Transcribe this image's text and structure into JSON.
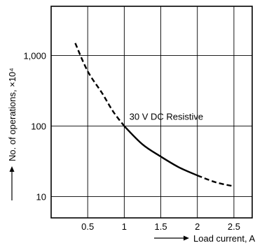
{
  "chart_data": {
    "type": "line",
    "title": "",
    "xlabel": "Load current, A",
    "ylabel": "No. of operations, ×10⁴",
    "x_scale": "linear",
    "y_scale": "log",
    "xlim": [
      0,
      2.75
    ],
    "ylim": [
      5,
      5000
    ],
    "x_ticks": [
      0.5,
      1,
      1.5,
      2,
      2.5
    ],
    "x_tick_labels": [
      "0.5",
      "1",
      "1.5",
      "2",
      "2.5"
    ],
    "y_ticks": [
      10,
      100,
      1000
    ],
    "y_tick_labels": [
      "10",
      "100",
      "1,000"
    ],
    "grid": true,
    "annotations": [
      {
        "text": "30 V DC Resistive"
      }
    ],
    "series": [
      {
        "segments": [
          {
            "style": "dashed",
            "x": [
              0.33,
              0.5,
              0.7,
              0.85,
              1.0
            ],
            "y": [
              1500,
              600,
              290,
              160,
              100
            ]
          },
          {
            "style": "solid",
            "x": [
              1.0,
              1.25,
              1.5,
              1.75,
              2.0
            ],
            "y": [
              100,
              55,
              37,
              26,
              20
            ]
          },
          {
            "style": "dashed",
            "x": [
              2.0,
              2.25,
              2.5
            ],
            "y": [
              20,
              16,
              14
            ]
          }
        ]
      }
    ]
  }
}
